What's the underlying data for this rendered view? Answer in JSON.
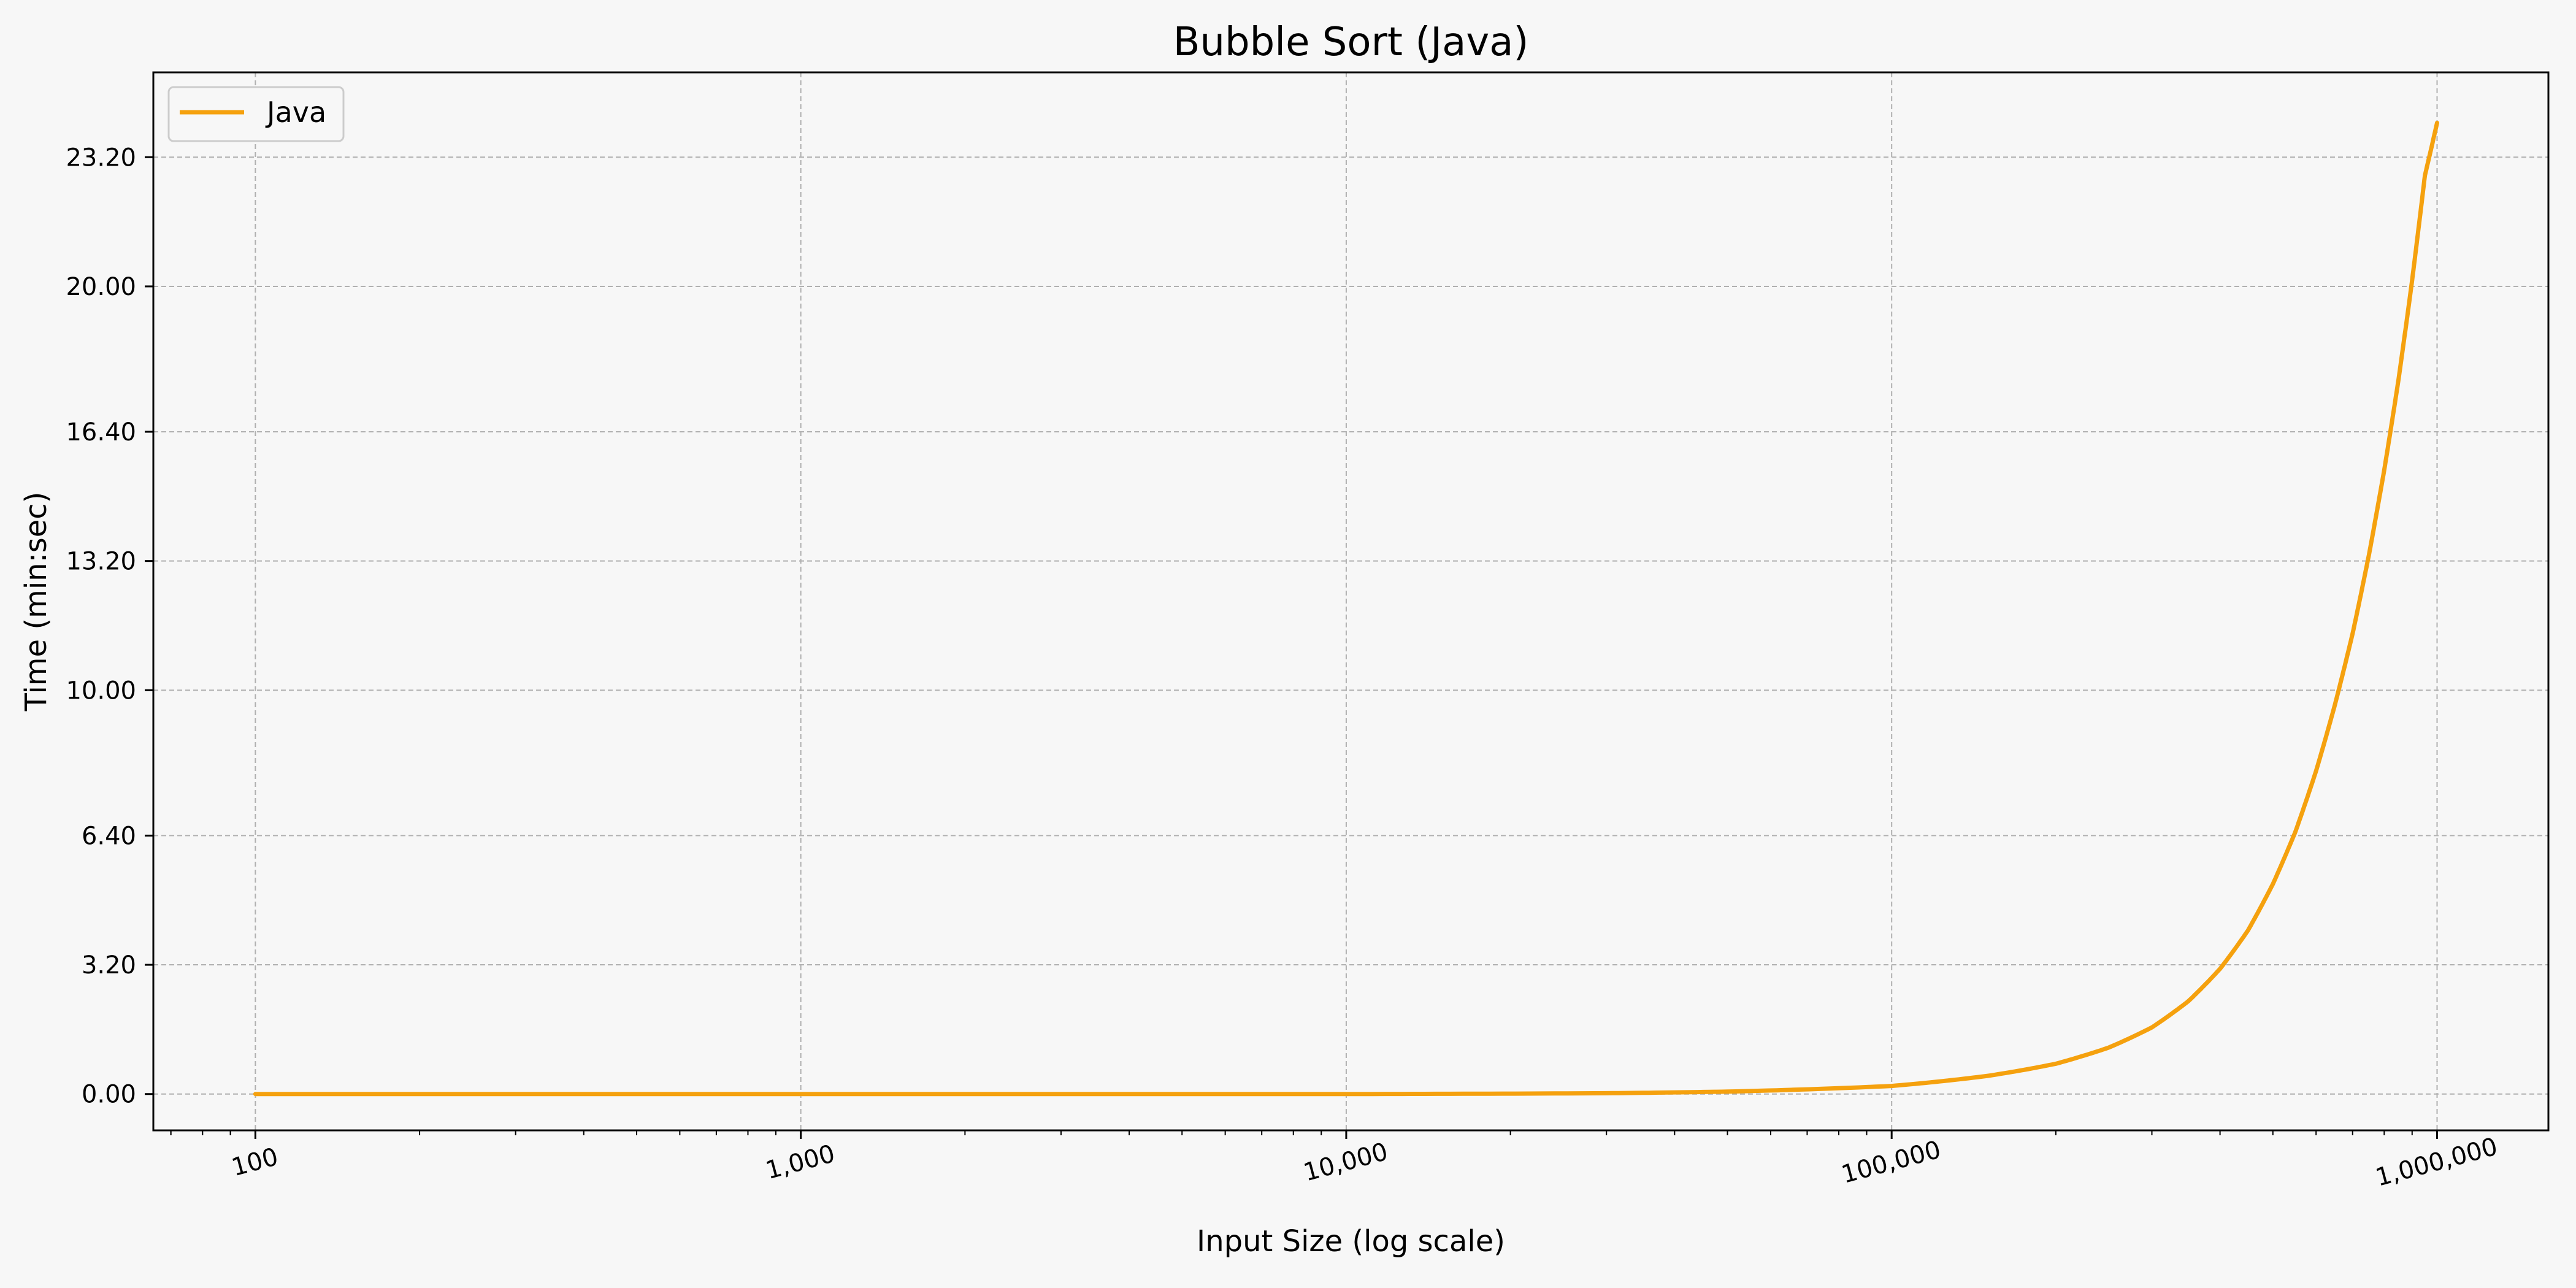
{
  "chart_data": {
    "type": "line",
    "title": "Bubble Sort (Java)",
    "xlabel": "Input Size (log scale)",
    "ylabel": "Time (min:sec)",
    "x_scale": "log",
    "xlim": [
      65,
      1600000
    ],
    "ylim": [
      -0.9,
      25.3
    ],
    "x_ticks": [
      100,
      1000,
      10000,
      100000,
      1000000
    ],
    "x_tick_labels": [
      "100",
      "1,000",
      "10,000",
      "100,000",
      "1,000,000"
    ],
    "y_ticks": [
      0,
      3.2,
      6.4,
      10.0,
      13.2,
      16.4,
      20.0,
      23.2
    ],
    "y_tick_labels": [
      "0.00",
      "3.20",
      "6.40",
      "10.00",
      "13.20",
      "16.40",
      "20.00",
      "23.20"
    ],
    "grid": true,
    "legend_position": "top-left",
    "series": [
      {
        "name": "Java",
        "color": "#f5a10e",
        "x": [
          100,
          1000,
          10000,
          30000,
          50000,
          100000,
          150000,
          200000,
          250000,
          300000,
          350000,
          400000,
          450000,
          500000,
          550000,
          600000,
          650000,
          700000,
          750000,
          800000,
          850000,
          900000,
          950000,
          1000000
        ],
        "y": [
          0.0,
          0.0,
          0.0,
          0.02,
          0.06,
          0.2,
          0.45,
          0.75,
          1.15,
          1.65,
          2.3,
          3.1,
          4.05,
          5.2,
          6.5,
          8.0,
          9.65,
          11.4,
          13.35,
          15.45,
          17.7,
          20.15,
          22.75,
          24.05
        ]
      }
    ]
  }
}
